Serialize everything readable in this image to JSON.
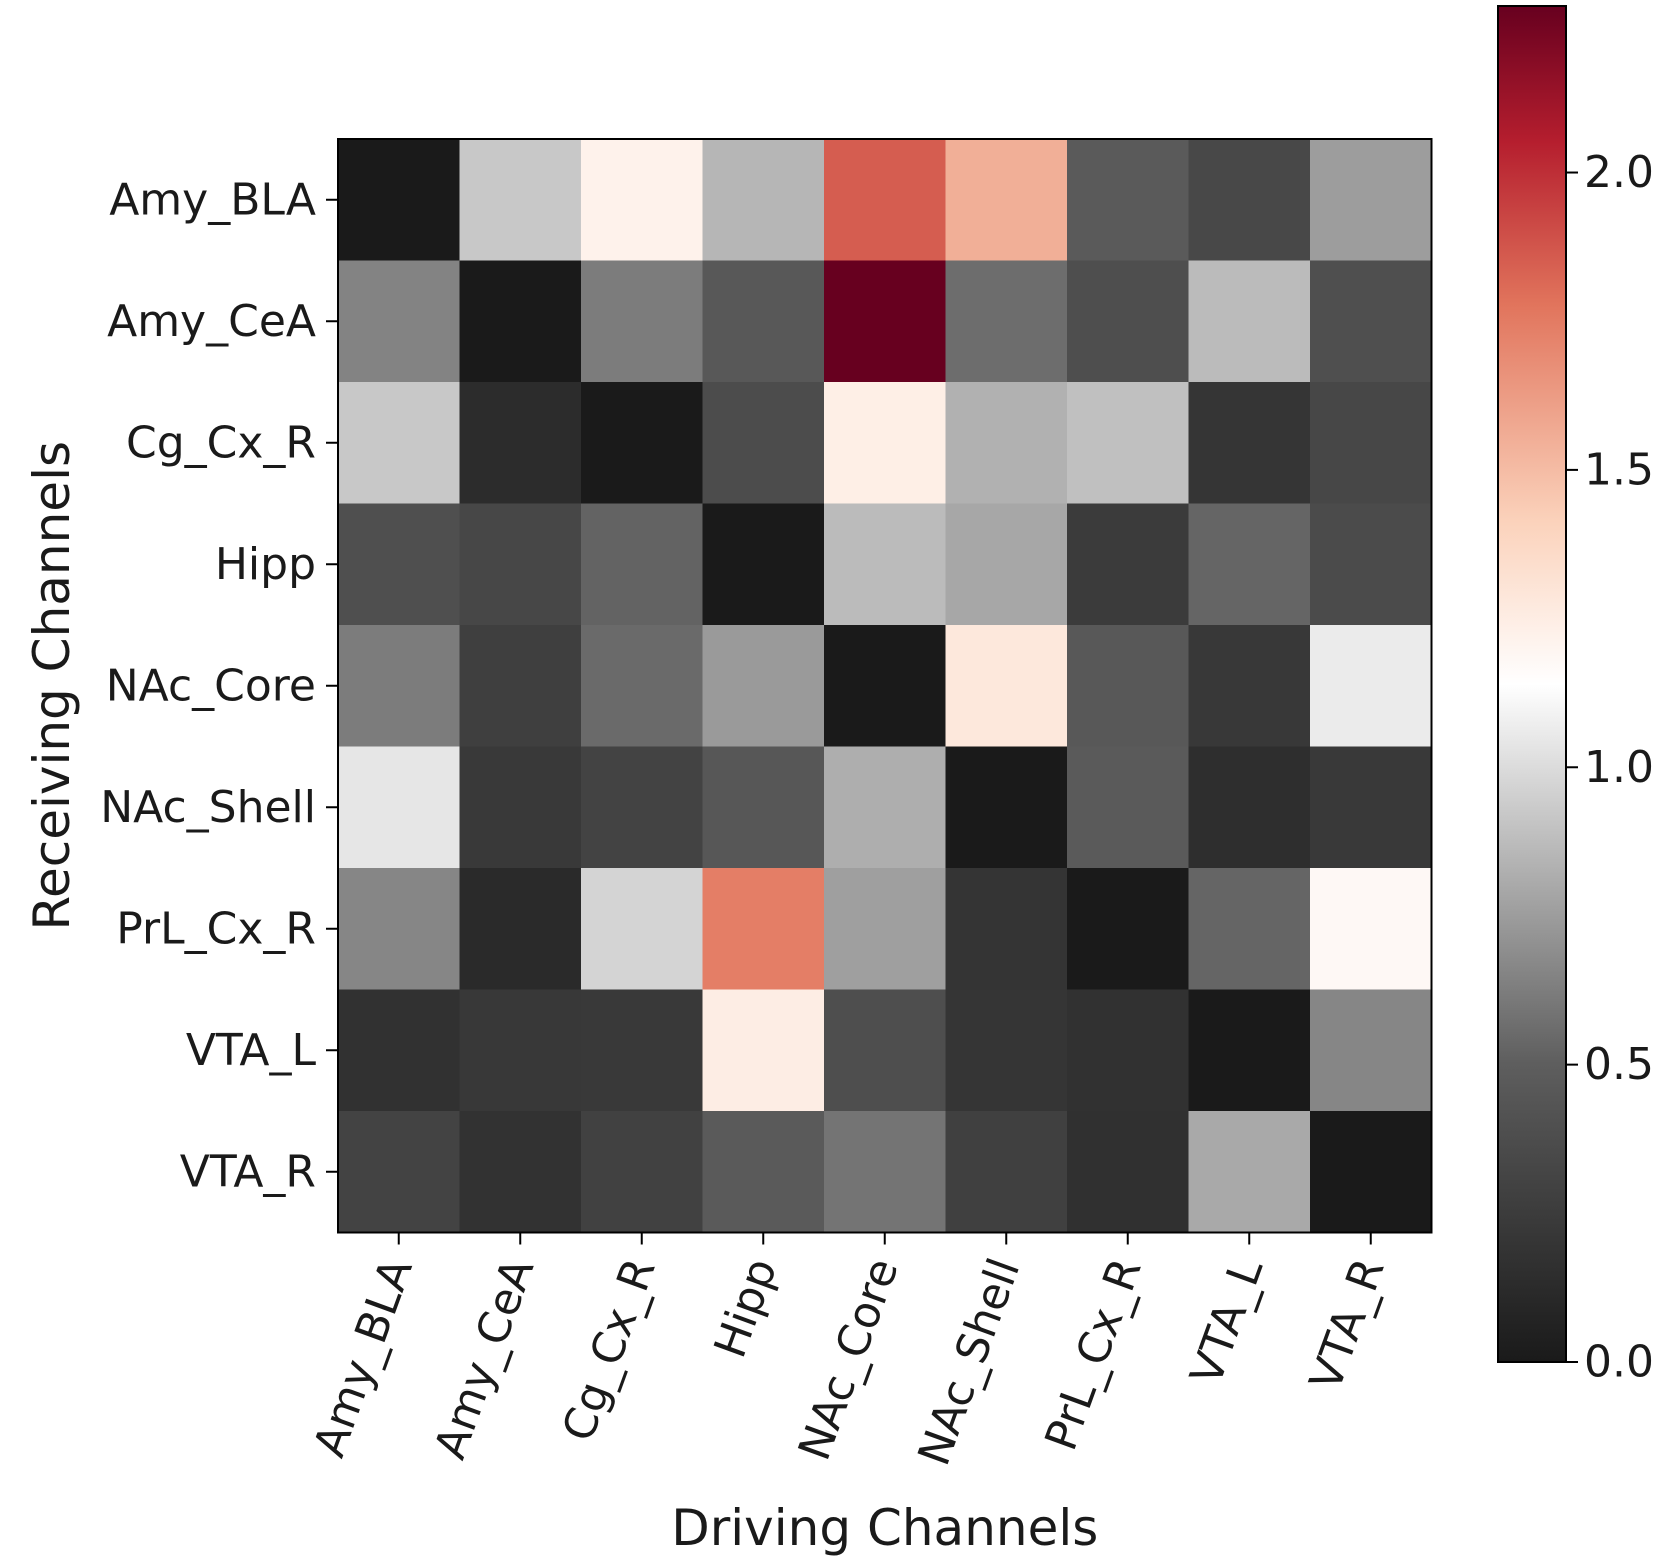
{
  "chart_data": {
    "type": "heatmap",
    "title": "",
    "xlabel": "Driving Channels",
    "ylabel": "Receiving Channels",
    "x_categories": [
      "Amy_BLA",
      "Amy_CeA",
      "Cg_Cx_R",
      "Hipp",
      "NAc_Core",
      "NAc_Shell",
      "PrL_Cx_R",
      "VTA_L",
      "VTA_R"
    ],
    "y_categories": [
      "Amy_BLA",
      "Amy_CeA",
      "Cg_Cx_R",
      "Hipp",
      "NAc_Core",
      "NAc_Shell",
      "PrL_Cx_R",
      "VTA_L",
      "VTA_R"
    ],
    "values": [
      [
        0.0,
        0.92,
        1.22,
        0.85,
        1.85,
        1.55,
        0.47,
        0.34,
        0.75
      ],
      [
        0.65,
        0.0,
        0.62,
        0.46,
        2.28,
        0.56,
        0.38,
        0.87,
        0.39
      ],
      [
        0.92,
        0.13,
        0.0,
        0.37,
        1.24,
        0.83,
        0.89,
        0.2,
        0.33
      ],
      [
        0.39,
        0.33,
        0.52,
        0.0,
        0.87,
        0.79,
        0.24,
        0.53,
        0.36
      ],
      [
        0.62,
        0.27,
        0.55,
        0.74,
        0.0,
        1.28,
        0.46,
        0.22,
        1.06
      ],
      [
        1.04,
        0.23,
        0.3,
        0.45,
        0.82,
        0.0,
        0.47,
        0.15,
        0.23
      ],
      [
        0.66,
        0.12,
        0.97,
        1.74,
        0.76,
        0.19,
        0.0,
        0.53,
        1.18
      ],
      [
        0.17,
        0.22,
        0.23,
        1.25,
        0.38,
        0.2,
        0.17,
        0.0,
        0.66
      ],
      [
        0.3,
        0.18,
        0.29,
        0.47,
        0.59,
        0.28,
        0.16,
        0.8,
        0.0
      ]
    ],
    "colorbar": {
      "min": 0.0,
      "max": 2.28,
      "ticks": [
        0.0,
        0.5,
        1.0,
        1.5,
        2.0
      ],
      "tick_labels": [
        "0.0",
        "0.5",
        "1.0",
        "1.5",
        "2.0"
      ],
      "colormap": [
        {
          "pos": 0.0,
          "color": "#1a1a1a"
        },
        {
          "pos": 0.22,
          "color": "#5e5e5e"
        },
        {
          "pos": 0.5,
          "color": "#ffffff"
        },
        {
          "pos": 0.62,
          "color": "#fbd2bb"
        },
        {
          "pos": 0.78,
          "color": "#e1745c"
        },
        {
          "pos": 0.9,
          "color": "#b51e2e"
        },
        {
          "pos": 1.0,
          "color": "#67001f"
        }
      ]
    },
    "legend": "right"
  }
}
